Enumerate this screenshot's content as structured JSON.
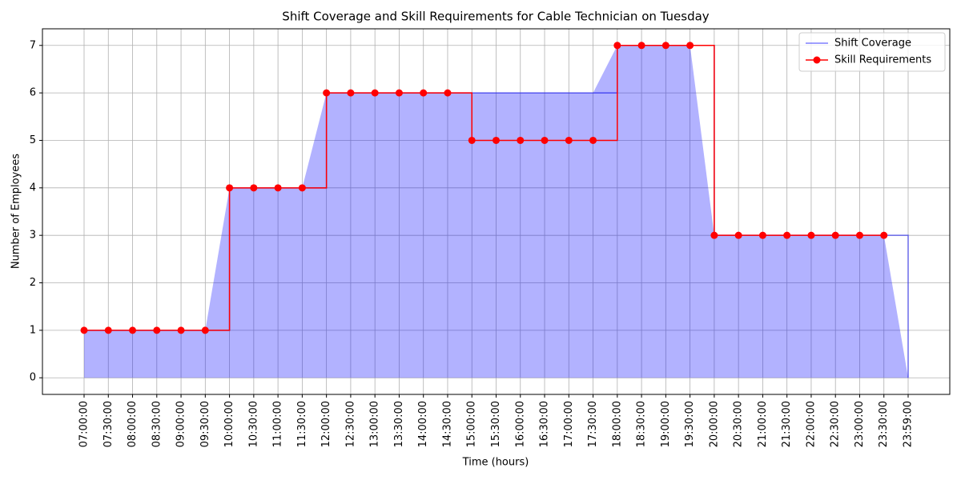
{
  "chart_data": {
    "type": "step",
    "title": "Shift Coverage and Skill Requirements for Cable Technician on Tuesday",
    "x_label": "Time (hours)",
    "y_label": "Number of Employees",
    "categories": [
      "07:00:00",
      "07:30:00",
      "08:00:00",
      "08:30:00",
      "09:00:00",
      "09:30:00",
      "10:00:00",
      "10:30:00",
      "11:00:00",
      "11:30:00",
      "12:00:00",
      "12:30:00",
      "13:00:00",
      "13:30:00",
      "14:00:00",
      "14:30:00",
      "15:00:00",
      "15:30:00",
      "16:00:00",
      "16:30:00",
      "17:00:00",
      "17:30:00",
      "18:00:00",
      "18:30:00",
      "19:00:00",
      "19:30:00",
      "20:00:00",
      "20:30:00",
      "21:00:00",
      "21:30:00",
      "22:00:00",
      "22:30:00",
      "23:00:00",
      "23:30:00",
      "23:59:00"
    ],
    "series": [
      {
        "name": "Shift Coverage",
        "color": "#0000ff",
        "fill": true,
        "values": [
          1,
          1,
          1,
          1,
          1,
          1,
          4,
          4,
          4,
          4,
          6,
          6,
          6,
          6,
          6,
          6,
          6,
          6,
          6,
          6,
          6,
          6,
          7,
          7,
          7,
          7,
          3,
          3,
          3,
          3,
          3,
          3,
          3,
          3,
          0
        ]
      },
      {
        "name": "Skill Requirements",
        "color": "#ff0000",
        "markers": true,
        "values": [
          1,
          1,
          1,
          1,
          1,
          1,
          4,
          4,
          4,
          4,
          6,
          6,
          6,
          6,
          6,
          6,
          5,
          5,
          5,
          5,
          5,
          5,
          7,
          7,
          7,
          7,
          3,
          3,
          3,
          3,
          3,
          3,
          3,
          3,
          null
        ]
      }
    ],
    "ylim": [
      -0.35,
      7.35
    ],
    "yticks": [
      0,
      1,
      2,
      3,
      4,
      5,
      6,
      7
    ],
    "grid": true,
    "legend": "upper right"
  }
}
